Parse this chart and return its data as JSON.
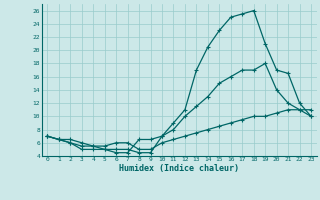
{
  "xlabel": "Humidex (Indice chaleur)",
  "background_color": "#cce8e8",
  "grid_color": "#99cccc",
  "line_color": "#006666",
  "xlim": [
    -0.5,
    23.5
  ],
  "ylim": [
    4,
    27
  ],
  "xticks": [
    0,
    1,
    2,
    3,
    4,
    5,
    6,
    7,
    8,
    9,
    10,
    11,
    12,
    13,
    14,
    15,
    16,
    17,
    18,
    19,
    20,
    21,
    22,
    23
  ],
  "yticks": [
    4,
    6,
    8,
    10,
    12,
    14,
    16,
    18,
    20,
    22,
    24,
    26
  ],
  "curve_top_x": [
    0,
    1,
    2,
    3,
    4,
    5,
    6,
    7,
    8,
    9,
    10,
    11,
    12,
    13,
    14,
    15,
    16,
    17,
    18,
    19,
    20,
    21,
    22,
    23
  ],
  "curve_top_y": [
    7,
    6.5,
    6.5,
    6,
    5.5,
    5,
    5,
    5,
    4.5,
    4.5,
    7,
    9,
    11,
    17,
    20.5,
    23,
    25,
    25.5,
    26,
    21,
    17,
    16.5,
    12,
    10
  ],
  "curve_mid_x": [
    0,
    1,
    2,
    3,
    4,
    5,
    6,
    7,
    8,
    9,
    10,
    11,
    12,
    13,
    14,
    15,
    16,
    17,
    18,
    19,
    20,
    21,
    22,
    23
  ],
  "curve_mid_y": [
    7,
    6.5,
    6,
    5,
    5,
    5,
    4.5,
    4.5,
    6.5,
    6.5,
    7,
    8,
    10,
    11.5,
    13,
    15,
    16,
    17,
    17,
    18,
    14,
    12,
    11,
    10
  ],
  "curve_bot_x": [
    0,
    1,
    2,
    3,
    4,
    5,
    6,
    7,
    8,
    9,
    10,
    11,
    12,
    13,
    14,
    15,
    16,
    17,
    18,
    19,
    20,
    21,
    22,
    23
  ],
  "curve_bot_y": [
    7,
    6.5,
    6,
    5.5,
    5.5,
    5.5,
    6,
    6,
    5,
    5,
    6,
    6.5,
    7,
    7.5,
    8,
    8.5,
    9,
    9.5,
    10,
    10,
    10.5,
    11,
    11,
    11
  ]
}
